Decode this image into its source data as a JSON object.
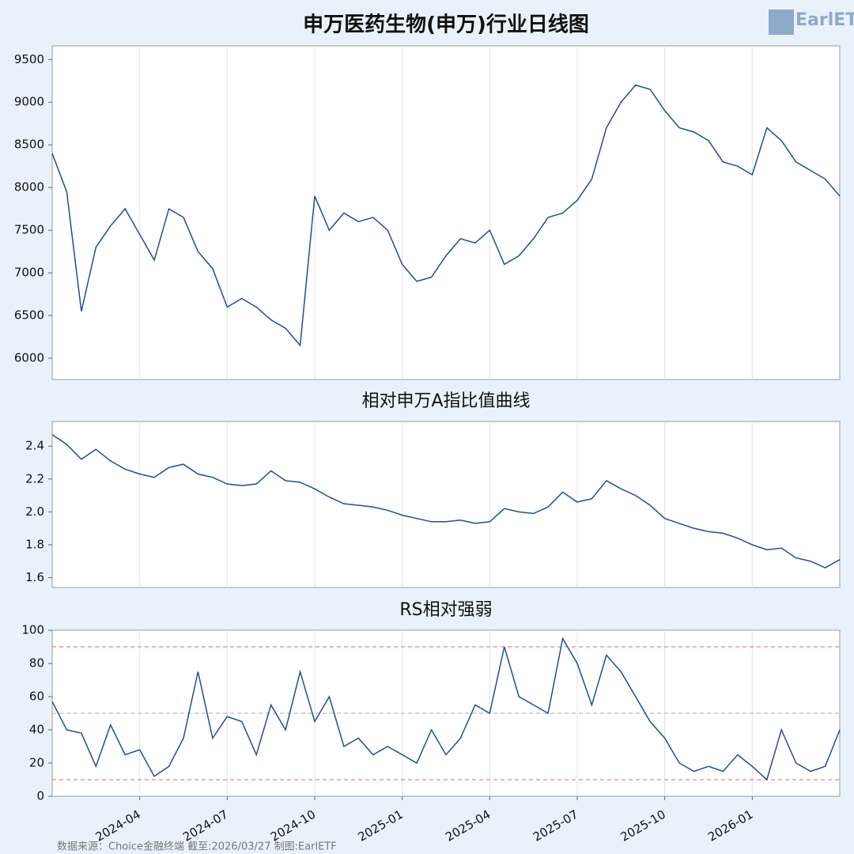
{
  "chart_data": [
    {
      "type": "line",
      "title": "申万医药生物(申万)行业日线图",
      "series": [
        {
          "name": "申万医药生物",
          "color": "#1f4e9a",
          "values": [
            8400,
            7950,
            6550,
            7300,
            7550,
            7750,
            7450,
            7150,
            7750,
            7650,
            7250,
            7050,
            6600,
            6700,
            6600,
            6450,
            6350,
            6150,
            7900,
            7500,
            7700,
            7600,
            7650,
            7500,
            7100,
            6900,
            6950,
            7200,
            7400,
            7350,
            7500,
            7100,
            7200,
            7400,
            7650,
            7700,
            7850,
            8100,
            8700,
            9000,
            9200,
            9150,
            8900,
            8700,
            8650,
            8550,
            8300,
            8250,
            8150,
            8700,
            8550,
            8300,
            8200,
            8100,
            7900
          ]
        }
      ],
      "ylim": [
        5750,
        9660
      ],
      "yticks": [
        6000,
        6500,
        7000,
        7500,
        8000,
        8500,
        9000,
        9500
      ],
      "grid": true
    },
    {
      "type": "line",
      "title": "相对申万A指比值曲线",
      "series": [
        {
          "name": "相对申万A指比值",
          "color": "#1f4e9a",
          "values": [
            2.47,
            2.41,
            2.32,
            2.38,
            2.31,
            2.26,
            2.23,
            2.21,
            2.27,
            2.29,
            2.23,
            2.21,
            2.17,
            2.16,
            2.17,
            2.25,
            2.19,
            2.18,
            2.14,
            2.09,
            2.05,
            2.04,
            2.03,
            2.01,
            1.98,
            1.96,
            1.94,
            1.94,
            1.95,
            1.93,
            1.94,
            2.02,
            2.0,
            1.99,
            2.03,
            2.12,
            2.06,
            2.08,
            2.19,
            2.14,
            2.1,
            2.04,
            1.96,
            1.93,
            1.9,
            1.88,
            1.87,
            1.84,
            1.8,
            1.77,
            1.78,
            1.72,
            1.7,
            1.66,
            1.71
          ]
        }
      ],
      "ylim": [
        1.54,
        2.55
      ],
      "yticks": [
        1.6,
        1.8,
        {
          "value": 2,
          "label": "2.0"
        },
        2.2,
        2.4
      ],
      "grid": true
    },
    {
      "type": "line",
      "title": "RS相对强弱",
      "categories": [
        null,
        null,
        null,
        null,
        null,
        null,
        "2024-04",
        null,
        null,
        null,
        null,
        null,
        "2024-07",
        null,
        null,
        null,
        null,
        null,
        "2024-10",
        null,
        null,
        null,
        null,
        null,
        "2025-01",
        null,
        null,
        null,
        null,
        null,
        "2025-04",
        null,
        null,
        null,
        null,
        null,
        "2025-07",
        null,
        null,
        null,
        null,
        null,
        "2025-10",
        null,
        null,
        null,
        null,
        null,
        "2026-01",
        null,
        null,
        null,
        null,
        null,
        null
      ],
      "series": [
        {
          "name": "RS",
          "color": "#1f4e9a",
          "values": [
            57,
            40,
            38,
            18,
            43,
            25,
            28,
            12,
            18,
            35,
            75,
            35,
            48,
            45,
            25,
            55,
            40,
            75,
            45,
            60,
            30,
            35,
            25,
            30,
            25,
            20,
            40,
            25,
            35,
            55,
            50,
            90,
            60,
            55,
            50,
            95,
            80,
            55,
            85,
            75,
            60,
            45,
            35,
            20,
            15,
            18,
            15,
            25,
            18,
            10,
            40,
            20,
            15,
            18,
            40
          ]
        }
      ],
      "reference_lines": [
        {
          "value": 90,
          "color": "#f08080"
        },
        {
          "value": 50,
          "color": "#bbbbbb"
        },
        {
          "value": 10,
          "color": "#f08080"
        }
      ],
      "ylim": [
        0,
        100
      ],
      "yticks": [
        0,
        20,
        40,
        60,
        80,
        100
      ],
      "grid": true
    }
  ],
  "watermark": "EarlETF",
  "footer": "数据来源：Choice金融终端 截至:2026/03/27 制图:EarlETF"
}
